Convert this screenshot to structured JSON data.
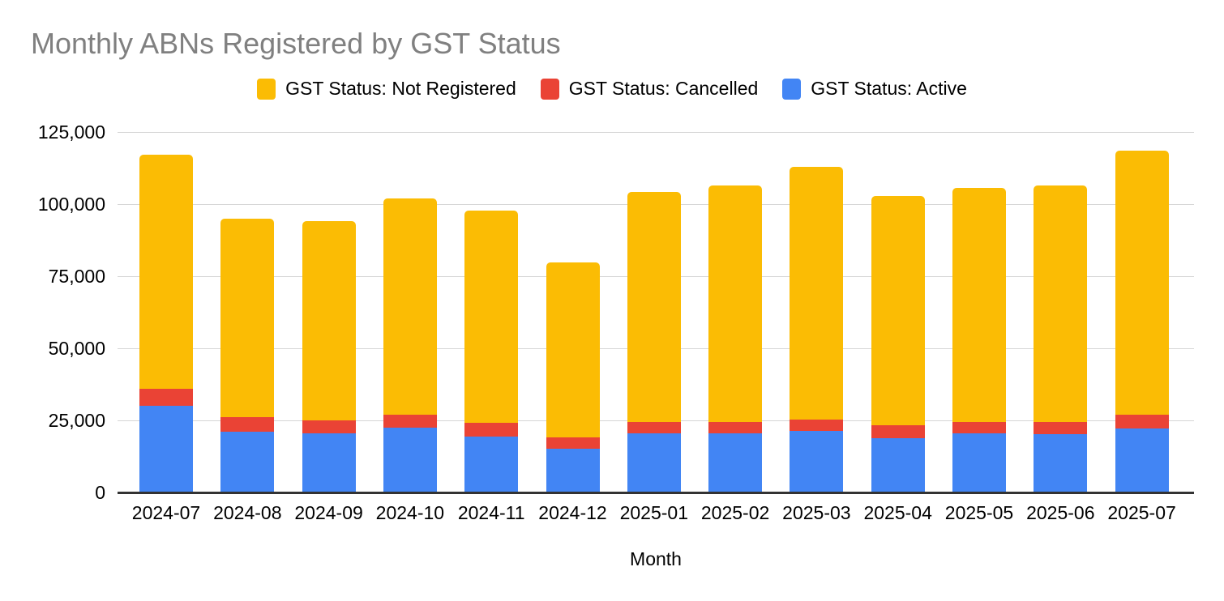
{
  "title": "Monthly ABNs Registered by GST Status",
  "x_axis_title": "Month",
  "colors": {
    "not_registered": "#FBBC04",
    "cancelled": "#EA4335",
    "active": "#4285F4",
    "title_text": "#808080",
    "gridline": "#d6d6d6",
    "axis_line": "#333333",
    "label_text": "#000000"
  },
  "chart_data": {
    "type": "bar",
    "stacked": true,
    "title": "Monthly ABNs Registered by GST Status",
    "xlabel": "Month",
    "ylabel": "",
    "grid": true,
    "legend_position": "top",
    "ylim": [
      0,
      125000
    ],
    "yticks": [
      0,
      25000,
      50000,
      75000,
      100000,
      125000
    ],
    "ytick_labels": [
      "0",
      "25,000",
      "50,000",
      "75,000",
      "100,000",
      "125,000"
    ],
    "categories": [
      "2024-07",
      "2024-08",
      "2024-09",
      "2024-10",
      "2024-11",
      "2024-12",
      "2025-01",
      "2025-02",
      "2025-03",
      "2025-04",
      "2025-05",
      "2025-06",
      "2025-07"
    ],
    "series": [
      {
        "name": "GST Status: Active",
        "color": "#4285F4",
        "values": [
          30000,
          21000,
          20500,
          22400,
          19500,
          15100,
          20500,
          20500,
          21300,
          18800,
          20500,
          20200,
          22100
        ]
      },
      {
        "name": "GST Status: Cancelled",
        "color": "#EA4335",
        "values": [
          6000,
          5000,
          4500,
          4500,
          4800,
          4000,
          4000,
          4000,
          4000,
          4500,
          4000,
          4200,
          4800
        ]
      },
      {
        "name": "GST Status: Not Registered",
        "color": "#FBBC04",
        "values": [
          81000,
          69000,
          69200,
          75100,
          73500,
          60800,
          79600,
          82000,
          87700,
          79600,
          81200,
          82000,
          91700
        ]
      }
    ],
    "legend": [
      {
        "label": "GST Status: Not Registered",
        "color": "#FBBC04"
      },
      {
        "label": "GST Status: Cancelled",
        "color": "#EA4335"
      },
      {
        "label": "GST Status: Active",
        "color": "#4285F4"
      }
    ]
  }
}
